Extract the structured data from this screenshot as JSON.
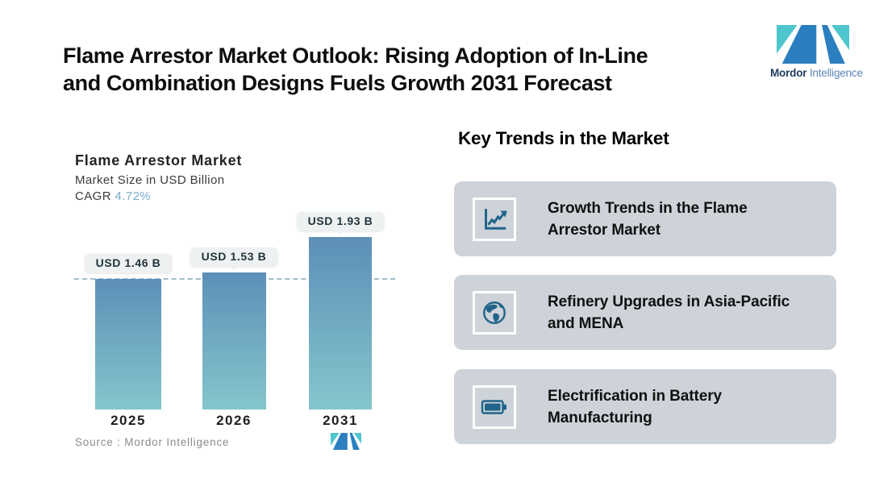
{
  "header": {
    "title_line1": "Flame Arrestor Market Outlook: Rising Adoption of In-Line",
    "title_line2": "and Combination Designs Fuels Growth 2031 Forecast"
  },
  "brand": {
    "name_bold": "Mordor",
    "name_light": "Intelligence",
    "mark_teal": "#4ec6cd",
    "mark_blue": "#2b7fc0"
  },
  "chart": {
    "title": "Flame Arrestor Market",
    "subtitle": "Market Size in USD Billion",
    "cagr_label": "CAGR",
    "cagr_value": "4.72%",
    "source": "Source :  Mordor Intelligence"
  },
  "chart_data": {
    "type": "bar",
    "title": "Flame Arrestor Market",
    "subtitle": "Market Size in USD Billion",
    "cagr": "4.72%",
    "categories": [
      "2025",
      "2026",
      "2031"
    ],
    "values": [
      1.46,
      1.53,
      1.93
    ],
    "value_labels": [
      "USD 1.46 B",
      "USD 1.53 B",
      "USD 1.93 B"
    ],
    "unit": "USD Billion",
    "reference_line": 1.46,
    "gridlines": false,
    "legend": false,
    "bar_gradient_top": "#5d8fb7",
    "bar_gradient_bottom": "#85c6cc",
    "reference_line_color": "#a3bccb"
  },
  "trends": {
    "heading": "Key Trends in the Market",
    "card_bg": "#cdd3d9",
    "icon_color": "#21658a",
    "items": [
      {
        "icon": "line-chart-icon",
        "label": "Growth Trends in the Flame Arrestor Market"
      },
      {
        "icon": "globe-icon",
        "label": "Refinery Upgrades in Asia-Pacific and MENA"
      },
      {
        "icon": "battery-icon",
        "label": "Electrification in Battery Manufacturing"
      }
    ]
  }
}
